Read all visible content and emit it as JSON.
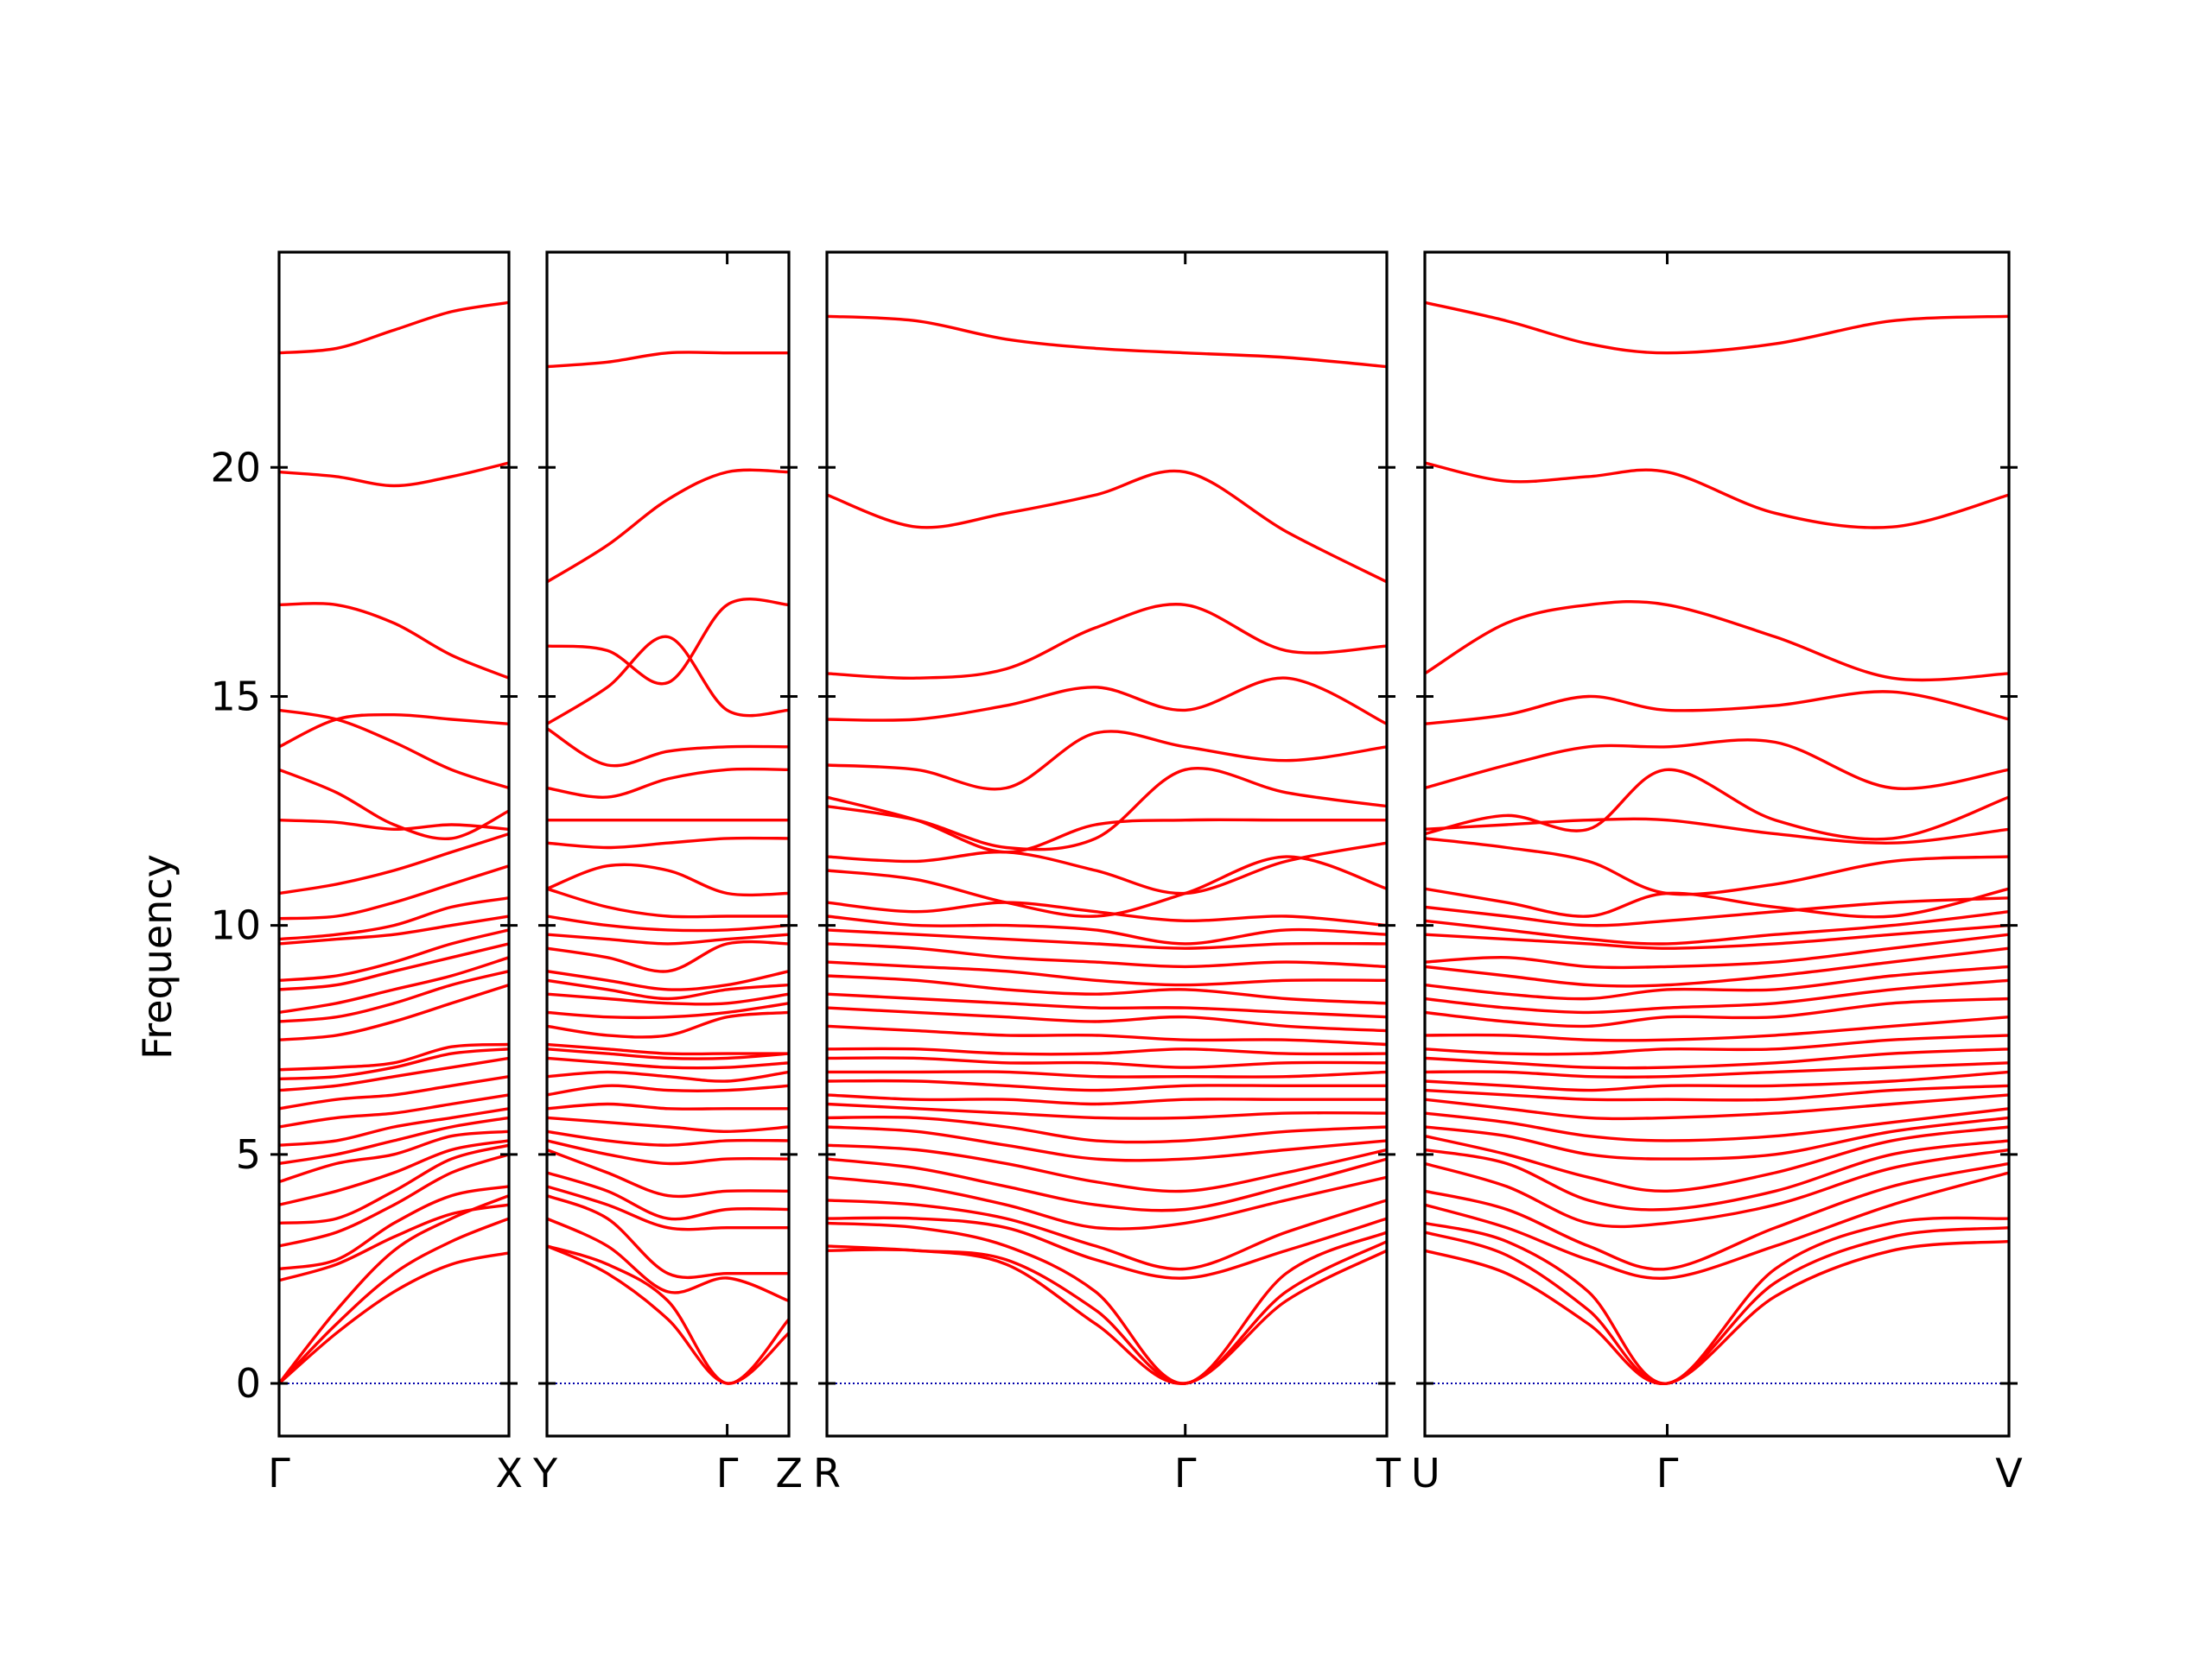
{
  "chart_data": {
    "type": "line",
    "ylabel": "Frequency",
    "ylim": [
      -1.15,
      24.7
    ],
    "yticks": [
      0,
      5,
      10,
      15,
      20
    ],
    "grid": false,
    "legend": "none",
    "colors": {
      "bands": "#ff0000",
      "zero_line": "#0000aa",
      "frame": "#000000"
    },
    "panels": [
      {
        "labels": [
          "Γ",
          "X"
        ],
        "inner_ticks": [],
        "x": [
          0,
          0.25,
          0.5,
          0.75,
          1.0
        ],
        "bands": [
          [
            0,
            1.1,
            2.0,
            2.6,
            2.85
          ],
          [
            0,
            1.3,
            2.4,
            3.1,
            3.6
          ],
          [
            0,
            1.6,
            2.9,
            3.6,
            4.1
          ],
          [
            2.25,
            2.6,
            3.2,
            3.7,
            3.9
          ],
          [
            2.5,
            2.7,
            3.5,
            4.1,
            4.3
          ],
          [
            3.0,
            3.3,
            3.9,
            4.6,
            5.0
          ],
          [
            3.5,
            3.6,
            4.2,
            4.9,
            5.2
          ],
          [
            3.9,
            4.2,
            4.6,
            5.1,
            5.3
          ],
          [
            4.4,
            4.8,
            5.0,
            5.4,
            5.5
          ],
          [
            4.8,
            5.0,
            5.3,
            5.6,
            5.8
          ],
          [
            5.2,
            5.3,
            5.6,
            5.8,
            6.0
          ],
          [
            5.6,
            5.8,
            5.9,
            6.1,
            6.3
          ],
          [
            6.0,
            6.2,
            6.3,
            6.5,
            6.7
          ],
          [
            6.4,
            6.5,
            6.7,
            6.9,
            7.1
          ],
          [
            6.65,
            6.7,
            6.9,
            7.2,
            7.3
          ],
          [
            6.85,
            6.9,
            7.0,
            7.35,
            7.4
          ],
          [
            7.5,
            7.6,
            7.9,
            8.3,
            8.7
          ],
          [
            7.9,
            8.0,
            8.3,
            8.7,
            9.0
          ],
          [
            8.1,
            8.3,
            8.6,
            8.9,
            9.3
          ],
          [
            8.6,
            8.7,
            9.0,
            9.3,
            9.6
          ],
          [
            8.8,
            8.9,
            9.2,
            9.6,
            9.9
          ],
          [
            9.6,
            9.7,
            9.8,
            10.0,
            10.2
          ],
          [
            9.7,
            9.8,
            10.0,
            10.4,
            10.6
          ],
          [
            10.15,
            10.2,
            10.5,
            10.9,
            11.3
          ],
          [
            10.7,
            10.9,
            11.2,
            11.6,
            12.0
          ],
          [
            12.3,
            12.25,
            12.1,
            12.2,
            12.1
          ],
          [
            13.4,
            12.9,
            12.2,
            11.9,
            12.5
          ],
          [
            13.9,
            14.5,
            14.6,
            14.5,
            14.4
          ],
          [
            14.7,
            14.5,
            14.0,
            13.4,
            13.0
          ],
          [
            17.0,
            17.0,
            16.6,
            15.9,
            15.4
          ],
          [
            19.9,
            19.8,
            19.6,
            19.8,
            20.1
          ],
          [
            22.5,
            22.6,
            23.0,
            23.4,
            23.6
          ]
        ]
      },
      {
        "labels": [
          "Y",
          "Γ",
          "Z"
        ],
        "inner_ticks": [
          0.745
        ],
        "x": [
          0,
          0.25,
          0.5,
          0.745,
          1.0
        ],
        "bands": [
          [
            3.0,
            2.4,
            1.4,
            0,
            1.1
          ],
          [
            3.0,
            2.6,
            1.8,
            0,
            1.4
          ],
          [
            3.6,
            3.0,
            2.0,
            2.3,
            1.8
          ],
          [
            4.1,
            3.6,
            2.4,
            2.4,
            2.4
          ],
          [
            4.3,
            3.9,
            3.4,
            3.4,
            3.4
          ],
          [
            4.6,
            4.2,
            3.6,
            3.8,
            3.8
          ],
          [
            5.1,
            4.6,
            4.1,
            4.2,
            4.2
          ],
          [
            5.3,
            5.0,
            4.8,
            4.9,
            4.9
          ],
          [
            5.5,
            5.3,
            5.2,
            5.3,
            5.3
          ],
          [
            5.8,
            5.7,
            5.6,
            5.5,
            5.6
          ],
          [
            6.0,
            6.1,
            6.0,
            6.0,
            6.0
          ],
          [
            6.3,
            6.5,
            6.4,
            6.4,
            6.5
          ],
          [
            6.7,
            6.8,
            6.7,
            6.6,
            6.8
          ],
          [
            7.1,
            7.0,
            6.9,
            6.9,
            7.0
          ],
          [
            7.3,
            7.2,
            7.1,
            7.1,
            7.2
          ],
          [
            7.4,
            7.3,
            7.2,
            7.2,
            7.2
          ],
          [
            7.8,
            7.6,
            7.6,
            8.0,
            8.1
          ],
          [
            8.1,
            8.0,
            8.0,
            8.1,
            8.3
          ],
          [
            8.5,
            8.4,
            8.3,
            8.3,
            8.5
          ],
          [
            8.8,
            8.6,
            8.4,
            8.6,
            8.7
          ],
          [
            9.0,
            8.8,
            8.6,
            8.7,
            9.0
          ],
          [
            9.5,
            9.3,
            9.0,
            9.6,
            9.6
          ],
          [
            9.8,
            9.7,
            9.6,
            9.7,
            9.8
          ],
          [
            10.2,
            10.0,
            9.9,
            9.9,
            10.0
          ],
          [
            10.8,
            10.4,
            10.2,
            10.2,
            10.2
          ],
          [
            10.8,
            11.3,
            11.2,
            10.7,
            10.7
          ],
          [
            11.8,
            11.7,
            11.8,
            11.9,
            11.9
          ],
          [
            12.3,
            12.3,
            12.3,
            12.3,
            12.3
          ],
          [
            13.0,
            12.8,
            13.2,
            13.4,
            13.4
          ],
          [
            14.3,
            13.5,
            13.8,
            13.9,
            13.9
          ],
          [
            14.4,
            15.2,
            16.3,
            14.7,
            14.7
          ],
          [
            16.1,
            16.0,
            15.3,
            17.0,
            17.0
          ],
          [
            17.5,
            18.3,
            19.3,
            19.9,
            19.9
          ],
          [
            22.2,
            22.3,
            22.5,
            22.5,
            22.5
          ]
        ]
      },
      {
        "labels": [
          "R",
          "Γ",
          "T"
        ],
        "inner_ticks": [
          0.64
        ],
        "x": [
          0,
          0.16,
          0.32,
          0.48,
          0.64,
          0.82,
          1.0
        ],
        "bands": [
          [
            2.9,
            2.9,
            2.6,
            1.3,
            0,
            1.8,
            2.9
          ],
          [
            3.0,
            2.9,
            2.7,
            1.6,
            0,
            2.0,
            3.1
          ],
          [
            3.5,
            3.4,
            3.0,
            2.0,
            0,
            2.4,
            3.3
          ],
          [
            3.6,
            3.6,
            3.4,
            2.7,
            2.3,
            2.9,
            3.6
          ],
          [
            4.0,
            3.9,
            3.6,
            3.0,
            2.5,
            3.3,
            4.0
          ],
          [
            4.5,
            4.3,
            3.9,
            3.4,
            3.5,
            4.0,
            4.5
          ],
          [
            4.9,
            4.7,
            4.3,
            3.9,
            3.8,
            4.3,
            4.9
          ],
          [
            5.2,
            5.1,
            4.8,
            4.4,
            4.2,
            4.6,
            5.1
          ],
          [
            5.6,
            5.5,
            5.2,
            4.9,
            4.9,
            5.1,
            5.3
          ],
          [
            5.8,
            5.8,
            5.6,
            5.3,
            5.3,
            5.5,
            5.6
          ],
          [
            6.1,
            6.0,
            5.9,
            5.8,
            5.8,
            5.9,
            5.9
          ],
          [
            6.3,
            6.2,
            6.2,
            6.1,
            6.2,
            6.2,
            6.2
          ],
          [
            6.6,
            6.6,
            6.5,
            6.4,
            6.5,
            6.5,
            6.5
          ],
          [
            6.8,
            6.8,
            6.8,
            6.7,
            6.7,
            6.7,
            6.8
          ],
          [
            7.1,
            7.1,
            7.0,
            7.0,
            6.9,
            7.0,
            7.0
          ],
          [
            7.3,
            7.3,
            7.2,
            7.2,
            7.3,
            7.2,
            7.2
          ],
          [
            7.8,
            7.7,
            7.6,
            7.6,
            7.5,
            7.5,
            7.4
          ],
          [
            8.2,
            8.1,
            8.0,
            7.9,
            8.0,
            7.8,
            7.7
          ],
          [
            8.5,
            8.4,
            8.3,
            8.2,
            8.2,
            8.1,
            8.0
          ],
          [
            8.9,
            8.8,
            8.6,
            8.5,
            8.6,
            8.4,
            8.3
          ],
          [
            9.2,
            9.1,
            9.0,
            8.8,
            8.7,
            8.8,
            8.8
          ],
          [
            9.6,
            9.5,
            9.3,
            9.2,
            9.1,
            9.2,
            9.1
          ],
          [
            9.9,
            9.8,
            9.7,
            9.6,
            9.5,
            9.6,
            9.6
          ],
          [
            10.2,
            10.0,
            10.0,
            9.9,
            9.6,
            9.9,
            9.8
          ],
          [
            10.5,
            10.3,
            10.5,
            10.3,
            10.1,
            10.2,
            10.0
          ],
          [
            11.2,
            11.0,
            10.5,
            10.2,
            10.7,
            11.5,
            10.8
          ],
          [
            11.5,
            11.4,
            11.6,
            11.2,
            10.7,
            11.4,
            11.8
          ],
          [
            12.8,
            12.3,
            11.6,
            12.2,
            12.3,
            12.3,
            12.3
          ],
          [
            12.6,
            12.3,
            11.7,
            11.9,
            13.4,
            12.9,
            12.6
          ],
          [
            13.5,
            13.4,
            13.0,
            14.2,
            13.9,
            13.6,
            13.9
          ],
          [
            14.5,
            14.5,
            14.8,
            15.2,
            14.7,
            15.4,
            14.4
          ],
          [
            15.5,
            15.4,
            15.6,
            16.5,
            17.0,
            16.0,
            16.1
          ],
          [
            19.4,
            18.7,
            19.0,
            19.4,
            19.9,
            18.6,
            17.5
          ],
          [
            23.3,
            23.2,
            22.8,
            22.6,
            22.5,
            22.4,
            22.2
          ]
        ]
      },
      {
        "labels": [
          "U",
          "Γ",
          "V"
        ],
        "inner_ticks": [
          0.415
        ],
        "x": [
          0,
          0.14,
          0.28,
          0.415,
          0.6,
          0.8,
          1.0
        ],
        "bands": [
          [
            2.9,
            2.4,
            1.3,
            0,
            1.9,
            2.9,
            3.1
          ],
          [
            3.3,
            2.8,
            1.6,
            0,
            2.2,
            3.2,
            3.4
          ],
          [
            3.5,
            3.1,
            2.0,
            0,
            2.5,
            3.5,
            3.6
          ],
          [
            3.9,
            3.4,
            2.7,
            2.3,
            3.0,
            3.9,
            4.6
          ],
          [
            4.2,
            3.8,
            3.0,
            2.5,
            3.4,
            4.3,
            4.8
          ],
          [
            4.8,
            4.3,
            3.5,
            3.5,
            3.9,
            4.7,
            5.1
          ],
          [
            5.1,
            4.8,
            4.0,
            3.8,
            4.2,
            5.0,
            5.3
          ],
          [
            5.4,
            5.0,
            4.5,
            4.2,
            4.6,
            5.3,
            5.6
          ],
          [
            5.6,
            5.4,
            5.0,
            4.9,
            5.0,
            5.5,
            5.8
          ],
          [
            5.9,
            5.7,
            5.4,
            5.3,
            5.4,
            5.7,
            6.0
          ],
          [
            6.2,
            6.0,
            5.8,
            5.8,
            5.9,
            6.1,
            6.3
          ],
          [
            6.4,
            6.3,
            6.2,
            6.2,
            6.2,
            6.4,
            6.5
          ],
          [
            6.6,
            6.5,
            6.4,
            6.5,
            6.5,
            6.6,
            6.8
          ],
          [
            6.8,
            6.8,
            6.7,
            6.7,
            6.8,
            6.9,
            7.0
          ],
          [
            7.1,
            7.0,
            6.9,
            6.9,
            7.0,
            7.2,
            7.3
          ],
          [
            7.3,
            7.2,
            7.2,
            7.3,
            7.3,
            7.5,
            7.6
          ],
          [
            7.6,
            7.6,
            7.5,
            7.5,
            7.6,
            7.8,
            8.0
          ],
          [
            8.1,
            7.9,
            7.8,
            8.0,
            8.0,
            8.3,
            8.4
          ],
          [
            8.4,
            8.2,
            8.1,
            8.2,
            8.3,
            8.6,
            8.8
          ],
          [
            8.7,
            8.5,
            8.4,
            8.6,
            8.6,
            8.9,
            9.1
          ],
          [
            9.1,
            8.9,
            8.7,
            8.7,
            8.9,
            9.2,
            9.5
          ],
          [
            9.2,
            9.3,
            9.1,
            9.1,
            9.2,
            9.5,
            9.8
          ],
          [
            9.8,
            9.7,
            9.6,
            9.5,
            9.6,
            9.8,
            10.0
          ],
          [
            10.1,
            9.9,
            9.7,
            9.6,
            9.8,
            10.0,
            10.3
          ],
          [
            10.4,
            10.2,
            10.0,
            10.1,
            10.3,
            10.5,
            10.6
          ],
          [
            10.8,
            10.5,
            10.2,
            10.7,
            10.4,
            10.2,
            10.8
          ],
          [
            11.9,
            11.7,
            11.4,
            10.7,
            10.9,
            11.4,
            11.5
          ],
          [
            12.1,
            12.2,
            12.3,
            12.3,
            12.0,
            11.8,
            12.1
          ],
          [
            12.0,
            12.4,
            12.1,
            13.4,
            12.3,
            11.9,
            12.8
          ],
          [
            13.0,
            13.5,
            13.9,
            13.9,
            14.0,
            13.0,
            13.4
          ],
          [
            14.4,
            14.6,
            15.0,
            14.7,
            14.8,
            15.1,
            14.5
          ],
          [
            15.5,
            16.6,
            17.0,
            17.0,
            16.3,
            15.4,
            15.5
          ],
          [
            20.1,
            19.7,
            19.8,
            19.9,
            19.0,
            18.7,
            19.4
          ],
          [
            23.6,
            23.2,
            22.7,
            22.5,
            22.7,
            23.2,
            23.3
          ]
        ]
      }
    ]
  }
}
